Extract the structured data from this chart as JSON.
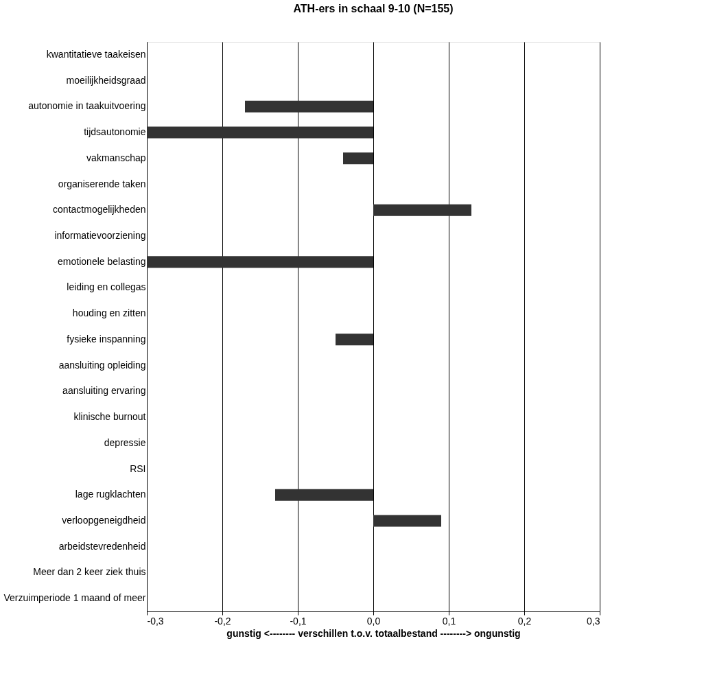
{
  "chart_data": {
    "type": "bar",
    "orientation": "horizontal",
    "title": "ATH-ers in schaal 9-10 (N=155)",
    "xlabel": "gunstig <-------- verschillen t.o.v. totaalbestand --------> ongunstig",
    "categories": [
      "kwantitatieve taakeisen",
      "moeilijkheidsgraad",
      "autonomie in taakuitvoering",
      "tijdsautonomie",
      "vakmanschap",
      "organiserende taken",
      "contactmogelijkheden",
      "informatievoorziening",
      "emotionele belasting",
      "leiding en collegas",
      "houding en zitten",
      "fysieke inspanning",
      "aansluiting opleiding",
      "aansluiting ervaring",
      "klinische burnout",
      "depressie",
      "RSI",
      "lage rugklachten",
      "verloopgeneigdheid",
      "arbeidstevredenheid",
      "Meer dan 2 keer ziek thuis",
      "Verzuimperiode 1 maand of meer"
    ],
    "values": [
      null,
      null,
      -0.17,
      -0.3,
      -0.04,
      null,
      0.13,
      null,
      -0.3,
      null,
      null,
      -0.05,
      null,
      null,
      null,
      null,
      null,
      -0.13,
      0.09,
      null,
      null,
      null
    ],
    "color": "#333333",
    "xlim": [
      -0.3,
      0.3
    ],
    "xticks": [
      {
        "value": -0.3,
        "label": "-0,3"
      },
      {
        "value": -0.2,
        "label": "-0,2"
      },
      {
        "value": -0.1,
        "label": "-0,1"
      },
      {
        "value": 0,
        "label": "0,0"
      },
      {
        "value": 0.1,
        "label": "0,1"
      },
      {
        "value": 0.2,
        "label": "0,2"
      },
      {
        "value": 0.3,
        "label": "0,3"
      }
    ],
    "grid": "x"
  }
}
